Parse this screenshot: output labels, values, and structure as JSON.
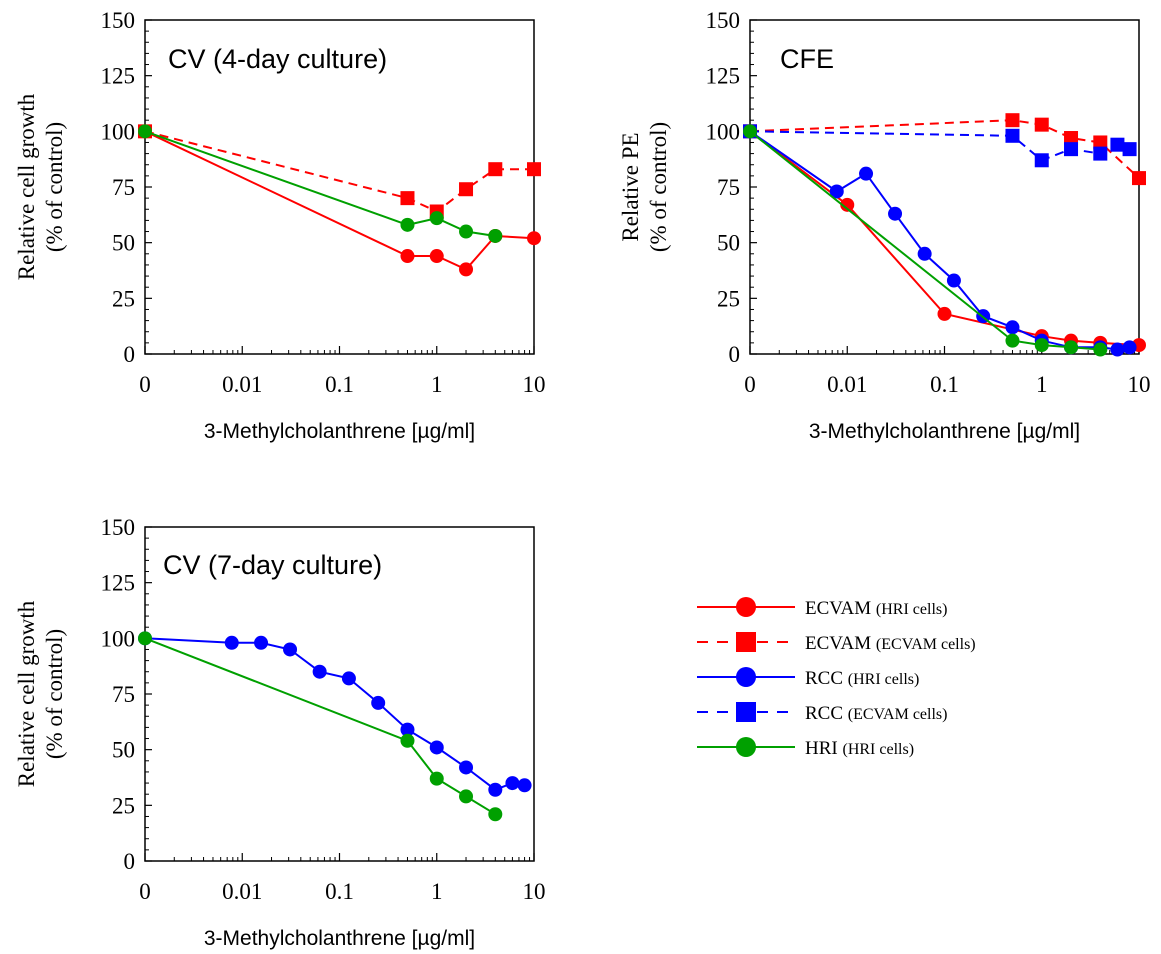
{
  "chart_data": [
    {
      "type": "line",
      "title": "CV (4-day culture)",
      "xlabel": "3-Methylcholanthrene [µg/ml]",
      "ylabel": [
        "Relative cell growth",
        "(% of control)"
      ],
      "x_scale": "log",
      "xlim": [
        0.001,
        10
      ],
      "ylim": [
        0,
        150
      ],
      "x_tick_labels": [
        "0",
        "0.01",
        "0.1",
        "1",
        "10"
      ],
      "x_tick_values": [
        0.001,
        0.01,
        0.1,
        1,
        10
      ],
      "y_ticks": [
        0,
        25,
        50,
        75,
        100,
        125,
        150
      ],
      "series": [
        {
          "name": "ECVAM (HRI cells)",
          "x": [
            0,
            0.5,
            1,
            2,
            4,
            10
          ],
          "y": [
            100,
            44,
            44,
            38,
            53,
            52
          ]
        },
        {
          "name": "ECVAM (ECVAM cells)",
          "x": [
            0,
            0.5,
            1,
            2,
            4,
            10
          ],
          "y": [
            100,
            70,
            64,
            74,
            83,
            83
          ]
        },
        {
          "name": "HRI (HRI cells)",
          "x": [
            0,
            0.5,
            1,
            2,
            4
          ],
          "y": [
            100,
            58,
            61,
            55,
            53
          ]
        }
      ]
    },
    {
      "type": "line",
      "title": "CFE",
      "xlabel": "3-Methylcholanthrene [µg/ml]",
      "ylabel": [
        "Relative PE",
        "(% of control)"
      ],
      "x_scale": "log",
      "xlim": [
        0.001,
        10
      ],
      "ylim": [
        0,
        150
      ],
      "x_tick_labels": [
        "0",
        "0.01",
        "0.1",
        "1",
        "10"
      ],
      "x_tick_values": [
        0.001,
        0.01,
        0.1,
        1,
        10
      ],
      "y_ticks": [
        0,
        25,
        50,
        75,
        100,
        125,
        150
      ],
      "series": [
        {
          "name": "ECVAM (HRI cells)",
          "x": [
            0,
            0.01,
            0.1,
            1,
            2,
            4,
            10
          ],
          "y": [
            100,
            67,
            18,
            8,
            6,
            5,
            4
          ]
        },
        {
          "name": "ECVAM (ECVAM cells)",
          "x": [
            0,
            0.5,
            1,
            2,
            4,
            10
          ],
          "y": [
            100,
            105,
            103,
            97,
            95,
            79
          ]
        },
        {
          "name": "RCC (HRI cells)",
          "x": [
            0,
            0.0078,
            0.0156,
            0.031,
            0.0625,
            0.125,
            0.25,
            0.5,
            1,
            2,
            4,
            6,
            8
          ],
          "y": [
            100,
            73,
            81,
            63,
            45,
            33,
            17,
            12,
            6,
            3,
            3,
            2,
            3
          ]
        },
        {
          "name": "RCC (ECVAM cells)",
          "x": [
            0,
            0.5,
            1,
            2,
            4,
            6,
            8
          ],
          "y": [
            100,
            98,
            87,
            92,
            90,
            94,
            92
          ]
        },
        {
          "name": "HRI (HRI cells)",
          "x": [
            0,
            0.5,
            1,
            2,
            4
          ],
          "y": [
            100,
            6,
            4,
            3,
            2
          ]
        }
      ]
    },
    {
      "type": "line",
      "title": "CV (7-day culture)",
      "xlabel": "3-Methylcholanthrene [µg/ml]",
      "ylabel": [
        "Relative cell growth",
        "(% of control)"
      ],
      "x_scale": "log",
      "xlim": [
        0.001,
        10
      ],
      "ylim": [
        0,
        150
      ],
      "x_tick_labels": [
        "0",
        "0.01",
        "0.1",
        "1",
        "10"
      ],
      "x_tick_values": [
        0.001,
        0.01,
        0.1,
        1,
        10
      ],
      "y_ticks": [
        0,
        25,
        50,
        75,
        100,
        125,
        150
      ],
      "series": [
        {
          "name": "RCC (HRI cells)",
          "x": [
            0,
            0.0078,
            0.0156,
            0.031,
            0.0625,
            0.125,
            0.25,
            0.5,
            1,
            2,
            4,
            6,
            8
          ],
          "y": [
            100,
            98,
            98,
            95,
            85,
            82,
            71,
            59,
            51,
            42,
            32,
            35,
            34
          ]
        },
        {
          "name": "HRI (HRI cells)",
          "x": [
            0,
            0.5,
            1,
            2,
            4
          ],
          "y": [
            100,
            54,
            37,
            29,
            21
          ]
        }
      ]
    }
  ],
  "legend": {
    "placement": "right of bottom-left panel",
    "entries": [
      {
        "label": "ECVAM",
        "detail": "(HRI cells)",
        "color": "#ff0000",
        "marker": "circle",
        "dash": "solid"
      },
      {
        "label": "ECVAM",
        "detail": "(ECVAM cells)",
        "color": "#ff0000",
        "marker": "square",
        "dash": "dashed"
      },
      {
        "label": "RCC",
        "detail": "(HRI cells)",
        "color": "#0000ff",
        "marker": "circle",
        "dash": "solid"
      },
      {
        "label": "RCC",
        "detail": "(ECVAM cells)",
        "color": "#0000ff",
        "marker": "square",
        "dash": "dashed"
      },
      {
        "label": "HRI",
        "detail": "(HRI cells)",
        "color": "#00a000",
        "marker": "circle",
        "dash": "solid"
      }
    ]
  },
  "series_styles": {
    "ECVAM (HRI cells)": {
      "color": "#ff0000",
      "marker": "circle",
      "dash": "solid"
    },
    "ECVAM (ECVAM cells)": {
      "color": "#ff0000",
      "marker": "square",
      "dash": "dashed"
    },
    "RCC (HRI cells)": {
      "color": "#0000ff",
      "marker": "circle",
      "dash": "solid"
    },
    "RCC (ECVAM cells)": {
      "color": "#0000ff",
      "marker": "square",
      "dash": "dashed"
    },
    "HRI (HRI cells)": {
      "color": "#00a000",
      "marker": "circle",
      "dash": "solid"
    }
  }
}
